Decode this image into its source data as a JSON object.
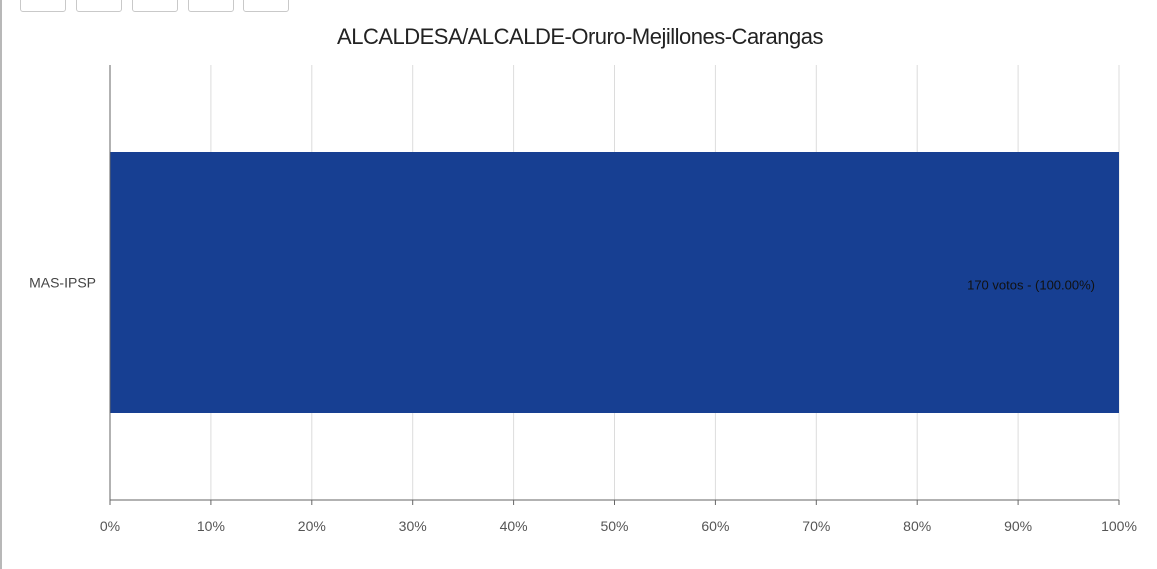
{
  "chart_data": {
    "type": "bar",
    "orientation": "horizontal",
    "title": "ALCALDESA/ALCALDE-Oruro-Mejillones-Carangas",
    "xlabel": "",
    "ylabel": "",
    "xlim": [
      0,
      100
    ],
    "x_ticks": [
      "0%",
      "10%",
      "20%",
      "30%",
      "40%",
      "50%",
      "60%",
      "70%",
      "80%",
      "90%",
      "100%"
    ],
    "categories": [
      "MAS-IPSP"
    ],
    "values": [
      100
    ],
    "data_labels": [
      "170 votos - (100.00%)"
    ],
    "bar_color": "#173f92",
    "grid": true,
    "legend": "none"
  },
  "toolbar": {
    "button_count": 5
  }
}
